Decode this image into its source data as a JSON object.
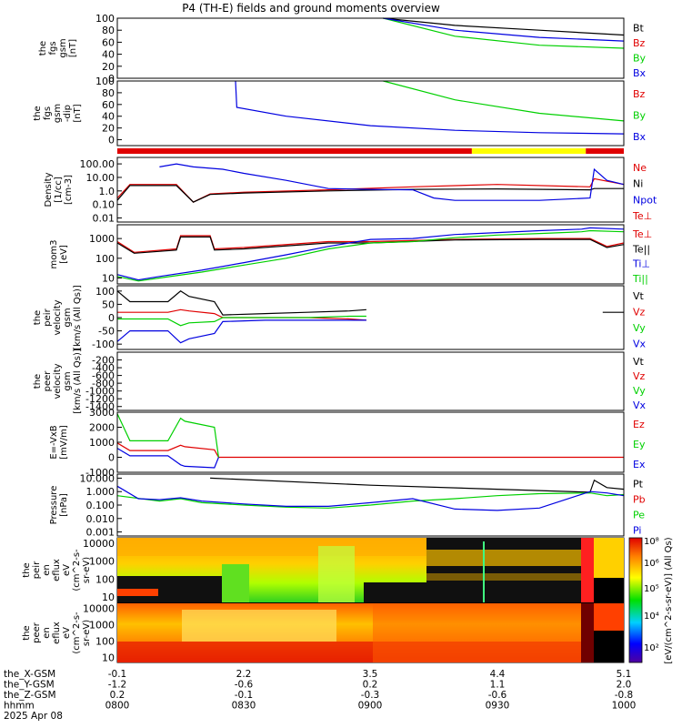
{
  "title": "P4 (TH-E) fields and ground moments overview",
  "colors": {
    "black": "#000000",
    "red": "#e00000",
    "green": "#00d000",
    "blue": "#0000e0",
    "yellow": "#ffff00"
  },
  "chart_data": {
    "type": "line",
    "xaxis": {
      "rows": [
        {
          "label": "the_X-GSM",
          "values": [
            "-0.1",
            "2.2",
            "3.5",
            "4.4",
            "5.1"
          ]
        },
        {
          "label": "the_Y-GSM",
          "values": [
            "-1.2",
            "-0.6",
            "0.2",
            "1.1",
            "2.0"
          ]
        },
        {
          "label": "the_Z-GSM",
          "values": [
            "0.2",
            "-0.1",
            "-0.3",
            "-0.6",
            "-0.8"
          ]
        },
        {
          "label": "hhmm",
          "values": [
            "0800",
            "0830",
            "0900",
            "0930",
            "1000"
          ]
        }
      ],
      "date": "2025 Apr 08",
      "range_min": [
        0,
        120
      ]
    },
    "panels": [
      {
        "id": "fgs-gsm",
        "ylabel": [
          "the",
          "fgs",
          "gsm",
          "[nT]"
        ],
        "scale": "linear",
        "ylim": [
          0,
          100
        ],
        "ticks": [
          "0",
          "20",
          "40",
          "60",
          "80",
          "100"
        ],
        "legend": [
          "Bt",
          "Bz",
          "By",
          "Bx"
        ],
        "series": [
          {
            "name": "Bt",
            "x": [
              63,
              80,
              100,
              120
            ],
            "y": [
              100,
              88,
              80,
              72
            ]
          },
          {
            "name": "By",
            "x": [
              63,
              80,
              100,
              120
            ],
            "y": [
              100,
              70,
              55,
              50
            ]
          },
          {
            "name": "Bx",
            "x": [
              63,
              80,
              100,
              120
            ],
            "y": [
              100,
              80,
              68,
              62
            ]
          }
        ]
      },
      {
        "id": "fgs-gsm-dip",
        "ylabel": [
          "the",
          "fgs",
          "gsm",
          "-dip",
          "[nT]"
        ],
        "scale": "linear",
        "ylim": [
          -10,
          100
        ],
        "ticks": [
          "0",
          "20",
          "40",
          "60",
          "80",
          "100"
        ],
        "legend": [
          "Bz",
          "By",
          "Bx"
        ],
        "series": [
          {
            "name": "By",
            "x": [
              63,
              80,
              100,
              120
            ],
            "y": [
              100,
              68,
              45,
              32
            ]
          },
          {
            "name": "Bx",
            "x": [
              28,
              28.3,
              40,
              60,
              80,
              100,
              120
            ],
            "y": [
              100,
              55,
              40,
              24,
              16,
              12,
              10
            ]
          }
        ]
      },
      {
        "id": "density",
        "ylabel": [
          "Density",
          "[1/cc]",
          "[cm-3]"
        ],
        "scale": "log",
        "ylim": [
          0.005,
          300
        ],
        "ticks": [
          "0.01",
          "0.10",
          "1.0",
          "10.00",
          "100.00"
        ],
        "legend": [
          "Ne",
          "Ni",
          "Npot",
          "Te⊥"
        ],
        "series": [
          {
            "name": "Ne",
            "x": [
              0,
              3,
              4,
              14,
              18,
              22,
              30,
              50,
              70,
              90,
              112,
              113,
              120
            ],
            "y": [
              0.3,
              3,
              3,
              3,
              0.15,
              0.6,
              0.8,
              1.2,
              2,
              3,
              2,
              8,
              3
            ]
          },
          {
            "name": "Ni",
            "x": [
              0,
              3,
              14,
              18,
              22,
              30,
              50,
              70,
              90,
              112,
              113,
              120
            ],
            "y": [
              0.2,
              2.5,
              2.5,
              0.15,
              0.55,
              0.7,
              1.0,
              1.3,
              1.4,
              1.2,
              1.5,
              1.5
            ]
          },
          {
            "name": "Npot",
            "x": [
              10,
              14,
              18,
              25,
              30,
              40,
              50,
              60,
              70,
              75,
              80,
              90,
              100,
              112,
              113,
              116,
              120
            ],
            "y": [
              60,
              100,
              60,
              40,
              20,
              6,
              1.5,
              1.3,
              1.2,
              0.3,
              0.2,
              0.2,
              0.2,
              0.3,
              40,
              6,
              3
            ]
          }
        ]
      },
      {
        "id": "moment",
        "ylabel": [
          "mom3",
          "[eV]"
        ],
        "scale": "log",
        "ylim": [
          5,
          5000
        ],
        "ticks": [
          "10",
          "100",
          "1000"
        ],
        "legend": [
          "Te⊥",
          "Te||",
          "Ti⊥",
          "Ti||"
        ],
        "series": [
          {
            "name": "Te⊥",
            "x": [
              0,
              4,
              14,
              15,
              22,
              23,
              30,
              50,
              60,
              80,
              100,
              112,
              116,
              120
            ],
            "y": [
              700,
              200,
              300,
              1400,
              1400,
              300,
              350,
              700,
              700,
              900,
              1000,
              1000,
              400,
              600
            ]
          },
          {
            "name": "Te||",
            "x": [
              0,
              4,
              14,
              15,
              22,
              23,
              30,
              50,
              60,
              80,
              100,
              112,
              116,
              120
            ],
            "y": [
              600,
              180,
              260,
              1200,
              1200,
              260,
              300,
              600,
              600,
              850,
              900,
              900,
              350,
              500
            ]
          },
          {
            "name": "Ti⊥",
            "x": [
              0,
              5,
              10,
              20,
              30,
              40,
              50,
              60,
              70,
              80,
              90,
              100,
              110,
              112,
              120
            ],
            "y": [
              15,
              8,
              12,
              25,
              60,
              150,
              400,
              900,
              1000,
              1600,
              2000,
              2500,
              3000,
              3500,
              3000
            ]
          },
          {
            "name": "Ti||",
            "x": [
              0,
              5,
              10,
              20,
              30,
              40,
              50,
              60,
              70,
              80,
              90,
              100,
              110,
              112,
              120
            ],
            "y": [
              12,
              7,
              10,
              20,
              45,
              100,
              300,
              600,
              700,
              1100,
              1500,
              1800,
              2200,
              2500,
              2200
            ]
          }
        ]
      },
      {
        "id": "peir-velocity",
        "ylabel": [
          "the",
          "peir",
          "velocity",
          "gsm",
          "[km/s (All Qs)]"
        ],
        "scale": "linear",
        "ylim": [
          -120,
          120
        ],
        "ticks": [
          "-100",
          "-50",
          "0",
          "50",
          "100"
        ],
        "legend": [
          "Vt",
          "Vz",
          "Vy",
          "Vx"
        ],
        "series": [
          {
            "name": "Vt",
            "x": [
              0,
              3,
              12,
              15,
              17,
              23,
              25,
              35,
              45,
              55,
              59
            ],
            "y": [
              100,
              60,
              60,
              100,
              80,
              60,
              10,
              15,
              20,
              25,
              30
            ]
          },
          {
            "name": "Vz",
            "x": [
              0,
              12,
              15,
              17,
              23,
              25,
              35,
              45,
              55,
              59
            ],
            "y": [
              20,
              20,
              30,
              25,
              15,
              0,
              0,
              0,
              -5,
              -10
            ]
          },
          {
            "name": "Vy",
            "x": [
              0,
              12,
              15,
              17,
              23,
              25,
              35,
              45,
              55,
              59
            ],
            "y": [
              -5,
              -5,
              -30,
              -20,
              -15,
              0,
              0,
              0,
              5,
              5
            ]
          },
          {
            "name": "Vx",
            "x": [
              0,
              3,
              12,
              15,
              17,
              23,
              25,
              35,
              45,
              55,
              59
            ],
            "y": [
              -90,
              -50,
              -50,
              -95,
              -80,
              -60,
              -15,
              -10,
              -10,
              -10,
              -10
            ]
          },
          {
            "name": "Vt",
            "x": [
              115,
              120
            ],
            "y": [
              20,
              20
            ]
          }
        ]
      },
      {
        "id": "peer-velocity",
        "ylabel": [
          "the",
          "peer",
          "velocity",
          "gsm",
          "[km/s (All Qs)]"
        ],
        "scale": "linear",
        "ylim": [
          -1500,
          0
        ],
        "ticks": [
          "-1400",
          "-1200",
          "-1000",
          "-800",
          "-600",
          "-400",
          "-200"
        ],
        "legend": [
          "Vt",
          "Vz",
          "Vy",
          "Vx"
        ],
        "series": []
      },
      {
        "id": "e-field",
        "ylabel": [
          "E=-VxB",
          "[mV/m]"
        ],
        "scale": "linear",
        "ylim": [
          -1000,
          3000
        ],
        "ticks": [
          "-1000",
          "0",
          "1000",
          "2000",
          "3000"
        ],
        "legend": [
          "Ez",
          "Ey",
          "Ex"
        ],
        "series": [
          {
            "name": "Ez",
            "x": [
              0,
              3,
              12,
              15,
              16,
              23,
              24,
              59,
              115,
              120
            ],
            "y": [
              950,
              450,
              450,
              800,
              700,
              500,
              0,
              0,
              0,
              0
            ]
          },
          {
            "name": "Ey",
            "x": [
              0,
              3,
              12,
              15,
              16,
              23,
              24
            ],
            "y": [
              2900,
              1100,
              1100,
              2600,
              2400,
              2000,
              0
            ]
          },
          {
            "name": "Ex",
            "x": [
              0,
              3,
              12,
              15,
              16,
              23,
              24
            ],
            "y": [
              600,
              100,
              100,
              -500,
              -600,
              -700,
              0
            ]
          }
        ]
      },
      {
        "id": "pressure",
        "ylabel": [
          "Pressure",
          "[nPa]"
        ],
        "scale": "log",
        "ylim": [
          0.0005,
          20
        ],
        "ticks": [
          "0.001",
          "0.010",
          "0.100",
          "1.000",
          "10.000"
        ],
        "legend": [
          "Pt",
          "Pb",
          "Pe",
          "Pi"
        ],
        "series": [
          {
            "name": "Pt",
            "x": [
              22,
              60,
              90,
              112,
              113,
              116,
              120
            ],
            "y": [
              10,
              3,
              1.5,
              0.9,
              7,
              2,
              1.5
            ]
          },
          {
            "name": "Pe",
            "x": [
              0,
              10,
              15,
              20,
              30,
              40,
              50,
              60,
              70,
              80,
              90,
              100,
              112,
              116,
              120
            ],
            "y": [
              0.5,
              0.2,
              0.3,
              0.15,
              0.1,
              0.07,
              0.06,
              0.1,
              0.2,
              0.3,
              0.5,
              0.7,
              0.8,
              0.5,
              0.6
            ]
          },
          {
            "name": "Pi",
            "x": [
              0,
              5,
              10,
              15,
              20,
              30,
              40,
              50,
              60,
              70,
              80,
              90,
              100,
              112,
              116,
              120
            ],
            "y": [
              2.5,
              0.3,
              0.25,
              0.35,
              0.2,
              0.12,
              0.08,
              0.08,
              0.15,
              0.3,
              0.05,
              0.04,
              0.06,
              1.0,
              0.8,
              0.5
            ]
          }
        ]
      },
      {
        "id": "peir-spectrogram",
        "type": "heatmap",
        "ylabel": [
          "the",
          "peir",
          "en",
          "eflux",
          "eV",
          "(cm^2-s-",
          "sr-eV)"
        ],
        "scale": "log",
        "ylim": [
          5,
          20000
        ],
        "ticks": [
          "10",
          "100",
          "1000",
          "10000"
        ]
      },
      {
        "id": "peer-spectrogram",
        "type": "heatmap",
        "ylabel": [
          "the",
          "peer",
          "en",
          "eflux",
          "eV",
          "(cm^2-s-",
          "sr-eV)"
        ],
        "scale": "log",
        "ylim": [
          5,
          20000
        ],
        "ticks": [
          "10",
          "100",
          "1000",
          "10000"
        ]
      }
    ],
    "colorbar": {
      "ticks": [
        "10²",
        "10⁴",
        "10⁵",
        "10⁶",
        "10⁸"
      ],
      "label": "[eV/(cm^2-s-sr-eV)] (All Qs)"
    },
    "mode_bar": [
      {
        "from": 0,
        "to": 84,
        "color": "red"
      },
      {
        "from": 84,
        "to": 111,
        "color": "yellow"
      },
      {
        "from": 111,
        "to": 120,
        "color": "red"
      }
    ]
  }
}
